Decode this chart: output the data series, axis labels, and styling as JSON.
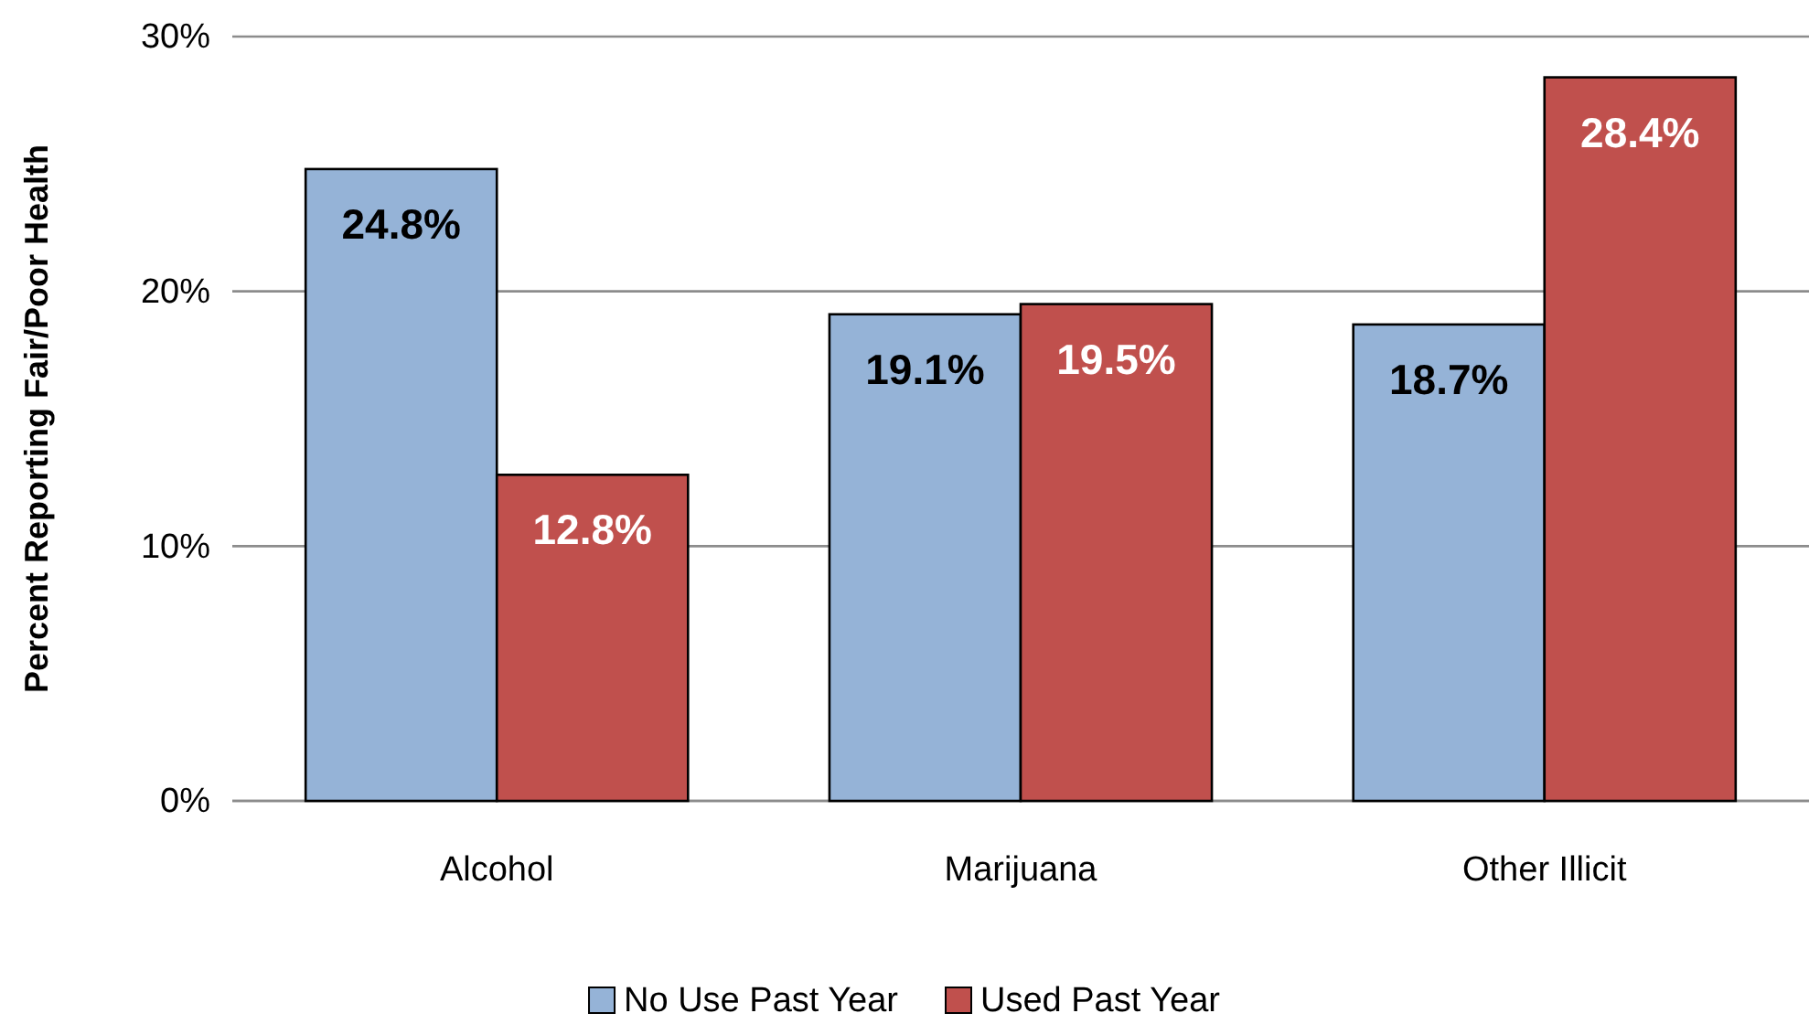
{
  "chart_data": {
    "type": "bar",
    "ylabel": "Percent Reporting Fair/Poor Health",
    "categories": [
      "Alcohol",
      "Marijuana",
      "Other Illicit"
    ],
    "series": [
      {
        "name": "No Use Past Year",
        "color": "#95b3d7",
        "values": [
          24.8,
          19.1,
          18.7
        ],
        "value_labels": [
          "24.8%",
          "19.1%",
          "18.7%"
        ]
      },
      {
        "name": "Used Past Year",
        "color": "#c0504d",
        "values": [
          12.8,
          19.5,
          28.4
        ],
        "value_labels": [
          "12.8%",
          "19.5%",
          "28.4%"
        ]
      }
    ],
    "ylim": [
      0,
      30
    ],
    "yticks": [
      {
        "value": 0,
        "label": "0%"
      },
      {
        "value": 10,
        "label": "10%"
      },
      {
        "value": 20,
        "label": "20%"
      },
      {
        "value": 30,
        "label": "30%"
      }
    ],
    "grid": "y",
    "legend": "bottom"
  }
}
